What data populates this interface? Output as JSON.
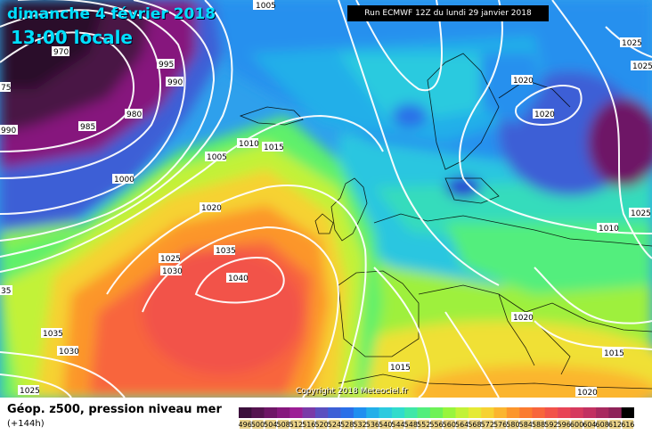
{
  "map": {
    "date_title": "dimanche 4 février 2018",
    "time_title": "13:00 locale",
    "run_info": "Run ECMWF 12Z du lundi 29 janvier 2018",
    "copyright": "Copyright 2018 Meteociel.fr",
    "product": "Géop. z500, pression niveau mer",
    "lead_time": "(+144h)"
  },
  "isobar_labels": [
    "1005",
    "970",
    "995",
    "990",
    "75",
    "980",
    "990",
    "985",
    "1010",
    "1015",
    "1005",
    "1000",
    "1020",
    "1025",
    "1030",
    "1035",
    "1040",
    "35",
    "1035",
    "1030",
    "1025",
    "1020",
    "1025",
    "1025",
    "1020",
    "1025",
    "1010",
    "1015",
    "1020",
    "1015",
    "1020"
  ],
  "color_scale": {
    "labels": [
      "496",
      "500",
      "504",
      "508",
      "512",
      "516",
      "520",
      "524",
      "528",
      "532",
      "536",
      "540",
      "544",
      "548",
      "552",
      "556",
      "560",
      "564",
      "568",
      "572",
      "576",
      "580",
      "584",
      "588",
      "592",
      "596",
      "600",
      "604",
      "608",
      "612",
      "616"
    ],
    "colors": [
      "#3b0f3b",
      "#55134f",
      "#6e1666",
      "#86187d",
      "#9c1e95",
      "#7a3aa8",
      "#5a4fc0",
      "#3c5fd6",
      "#2a6fe8",
      "#1f8ff0",
      "#22afe9",
      "#2bcadf",
      "#30dccc",
      "#3fe7a8",
      "#52ee7d",
      "#6ef257",
      "#98f53d",
      "#c2f237",
      "#e5ea35",
      "#f6d233",
      "#fbb52f",
      "#fc962c",
      "#fb7b2f",
      "#f8653c",
      "#f2524a",
      "#e84456",
      "#d63a5e",
      "#c23161",
      "#a82a5f",
      "#8e2359",
      "#000000"
    ]
  }
}
